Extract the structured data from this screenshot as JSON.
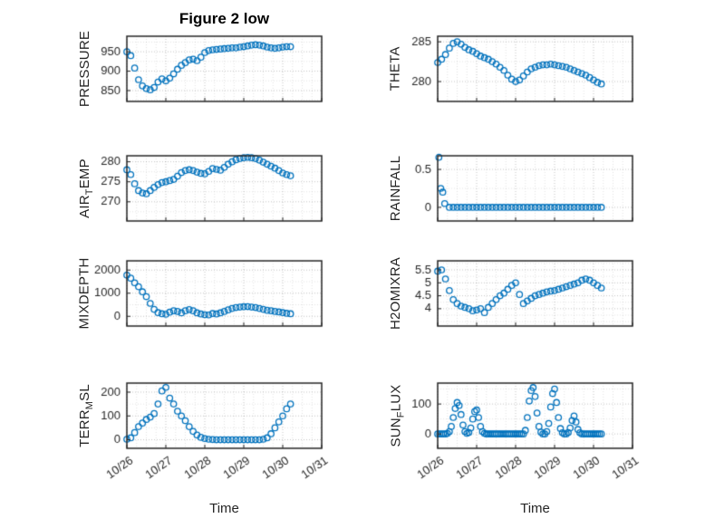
{
  "figure_title": "Figure 2 low",
  "xlabel": "Time",
  "axes_color": "#262626",
  "marker_color": "#0072BD",
  "grid_style": "dotted",
  "xlim": [
    0,
    5
  ],
  "x_tick_values": [
    0,
    1,
    2,
    3,
    4,
    5
  ],
  "x_tick_labels": [
    "10/26",
    "10/27",
    "10/28",
    "10/29",
    "10/30",
    "10/31"
  ],
  "chart_data": [
    {
      "name": "PRESSURE",
      "type": "scatter",
      "ylabel_pre": "PRESSURE",
      "ylabel_sub": "",
      "ylabel_post": "",
      "ytick_values": [
        850,
        900,
        950
      ],
      "ytick_labels": [
        "850",
        "900",
        "950"
      ],
      "ylim": [
        822,
        990
      ],
      "x": [
        0,
        0.1,
        0.2,
        0.3,
        0.4,
        0.5,
        0.6,
        0.7,
        0.8,
        0.9,
        1,
        1.1,
        1.2,
        1.3,
        1.4,
        1.5,
        1.6,
        1.7,
        1.8,
        1.9,
        2,
        2.1,
        2.2,
        2.3,
        2.4,
        2.5,
        2.6,
        2.7,
        2.8,
        2.9,
        3,
        3.1,
        3.2,
        3.3,
        3.4,
        3.5,
        3.6,
        3.7,
        3.8,
        3.9,
        4,
        4.1,
        4.2
      ],
      "y": [
        950,
        940,
        908,
        878,
        862,
        855,
        852,
        858,
        872,
        880,
        875,
        882,
        893,
        905,
        915,
        922,
        929,
        931,
        927,
        936,
        948,
        953,
        955,
        956,
        957,
        958,
        959,
        960,
        960,
        962,
        963,
        965,
        967,
        968,
        967,
        965,
        962,
        960,
        959,
        960,
        962,
        963,
        963
      ]
    },
    {
      "name": "AIR_TEMP",
      "type": "scatter",
      "ylabel_pre": "AIR",
      "ylabel_sub": "T",
      "ylabel_post": "EMP",
      "ytick_values": [
        270,
        275,
        280
      ],
      "ytick_labels": [
        "270",
        "275",
        "280"
      ],
      "ylim": [
        265.2,
        281.5
      ],
      "x": [
        0,
        0.1,
        0.2,
        0.3,
        0.4,
        0.5,
        0.6,
        0.7,
        0.8,
        0.9,
        1,
        1.1,
        1.2,
        1.3,
        1.4,
        1.5,
        1.6,
        1.7,
        1.8,
        1.9,
        2,
        2.1,
        2.2,
        2.3,
        2.4,
        2.5,
        2.6,
        2.7,
        2.8,
        2.9,
        3,
        3.1,
        3.2,
        3.3,
        3.4,
        3.5,
        3.6,
        3.7,
        3.8,
        3.9,
        4,
        4.1,
        4.2
      ],
      "y": [
        278,
        276.8,
        274.5,
        272.8,
        272.2,
        272,
        272.8,
        273.6,
        274.3,
        274.8,
        275,
        275.3,
        275.6,
        276.4,
        277.3,
        277.8,
        278,
        277.8,
        277.4,
        277.1,
        277,
        277.6,
        278.3,
        278.1,
        277.9,
        278.6,
        279.4,
        280,
        280.5,
        280.8,
        281,
        281.1,
        281,
        280.8,
        280.4,
        279.9,
        279.4,
        278.9,
        278.4,
        277.8,
        277.2,
        276.8,
        276.5
      ]
    },
    {
      "name": "MIXDEPTH",
      "type": "scatter",
      "ylabel_pre": "MIXDEPTH",
      "ylabel_sub": "",
      "ylabel_post": "",
      "ytick_values": [
        0,
        1000,
        2000
      ],
      "ytick_labels": [
        "0",
        "1000",
        "2000"
      ],
      "ylim": [
        -420,
        2400
      ],
      "x": [
        0,
        0.1,
        0.2,
        0.3,
        0.4,
        0.5,
        0.6,
        0.7,
        0.8,
        0.9,
        1,
        1.1,
        1.2,
        1.3,
        1.4,
        1.5,
        1.6,
        1.7,
        1.8,
        1.9,
        2,
        2.1,
        2.2,
        2.3,
        2.4,
        2.5,
        2.6,
        2.7,
        2.8,
        2.9,
        3,
        3.1,
        3.2,
        3.3,
        3.4,
        3.5,
        3.6,
        3.7,
        3.8,
        3.9,
        4,
        4.1,
        4.2
      ],
      "y": [
        1780,
        1650,
        1450,
        1280,
        1060,
        850,
        560,
        300,
        160,
        110,
        90,
        180,
        240,
        210,
        150,
        240,
        290,
        240,
        150,
        100,
        70,
        60,
        120,
        100,
        150,
        210,
        280,
        340,
        380,
        400,
        415,
        420,
        400,
        380,
        340,
        300,
        260,
        240,
        210,
        190,
        160,
        130,
        110
      ]
    },
    {
      "name": "TERR_MSL",
      "type": "scatter",
      "ylabel_pre": "TERR",
      "ylabel_sub": "M",
      "ylabel_post": "SL",
      "ytick_values": [
        0,
        100,
        200
      ],
      "ytick_labels": [
        "0",
        "100",
        "200"
      ],
      "ylim": [
        -36,
        238
      ],
      "x": [
        0,
        0.1,
        0.2,
        0.3,
        0.4,
        0.5,
        0.6,
        0.7,
        0.8,
        0.9,
        1,
        1.1,
        1.2,
        1.3,
        1.4,
        1.5,
        1.6,
        1.7,
        1.8,
        1.9,
        2,
        2.1,
        2.2,
        2.3,
        2.4,
        2.5,
        2.6,
        2.7,
        2.8,
        2.9,
        3,
        3.1,
        3.2,
        3.3,
        3.4,
        3.5,
        3.6,
        3.7,
        3.8,
        3.9,
        4,
        4.1,
        4.2
      ],
      "y": [
        2,
        8,
        30,
        55,
        70,
        85,
        95,
        110,
        150,
        205,
        220,
        175,
        150,
        120,
        100,
        80,
        55,
        35,
        20,
        10,
        5,
        2,
        1,
        0,
        0,
        0,
        0,
        0,
        0,
        0,
        0,
        0,
        0,
        0,
        0,
        2,
        8,
        25,
        50,
        75,
        100,
        130,
        150
      ]
    },
    {
      "name": "THETA",
      "type": "scatter",
      "ylabel_pre": "THETA",
      "ylabel_sub": "",
      "ylabel_post": "",
      "ytick_values": [
        280,
        285
      ],
      "ytick_labels": [
        "280",
        "285"
      ],
      "ylim": [
        277.5,
        285.7
      ],
      "x": [
        0,
        0.1,
        0.2,
        0.3,
        0.4,
        0.5,
        0.6,
        0.7,
        0.8,
        0.9,
        1,
        1.1,
        1.2,
        1.3,
        1.4,
        1.5,
        1.6,
        1.7,
        1.8,
        1.9,
        2,
        2.1,
        2.2,
        2.3,
        2.4,
        2.5,
        2.6,
        2.7,
        2.8,
        2.9,
        3,
        3.1,
        3.2,
        3.3,
        3.4,
        3.5,
        3.6,
        3.7,
        3.8,
        3.9,
        4,
        4.1,
        4.2
      ],
      "y": [
        282.4,
        282.8,
        283.4,
        284.2,
        284.8,
        285,
        284.7,
        284.3,
        284,
        283.8,
        283.5,
        283.2,
        283,
        282.8,
        282.5,
        282.2,
        281.8,
        281.4,
        280.8,
        280.3,
        280,
        280.2,
        280.7,
        281.2,
        281.6,
        281.8,
        282,
        282.1,
        282.1,
        282.2,
        282.1,
        282,
        281.9,
        281.8,
        281.6,
        281.4,
        281.2,
        281,
        280.8,
        280.5,
        280.2,
        279.9,
        279.7
      ]
    },
    {
      "name": "RAINFALL",
      "type": "scatter",
      "ylabel_pre": "RAINFALL",
      "ylabel_sub": "",
      "ylabel_post": "",
      "ytick_values": [
        0,
        0.5
      ],
      "ytick_labels": [
        "0",
        "0.5"
      ],
      "ylim": [
        -0.18,
        0.68
      ],
      "x": [
        0.03,
        0.08,
        0.13,
        0.18,
        0.3,
        0.4,
        0.5,
        0.6,
        0.7,
        0.8,
        0.9,
        1,
        1.1,
        1.2,
        1.3,
        1.4,
        1.5,
        1.6,
        1.7,
        1.8,
        1.9,
        2,
        2.1,
        2.2,
        2.3,
        2.4,
        2.5,
        2.6,
        2.7,
        2.8,
        2.9,
        3,
        3.1,
        3.2,
        3.3,
        3.4,
        3.5,
        3.6,
        3.7,
        3.8,
        3.9,
        4,
        4.1,
        4.2
      ],
      "y": [
        0.66,
        0.25,
        0.2,
        0.05,
        0,
        0,
        0,
        0,
        0,
        0,
        0,
        0,
        0,
        0,
        0,
        0,
        0,
        0,
        0,
        0,
        0,
        0,
        0,
        0,
        0,
        0,
        0,
        0,
        0,
        0,
        0,
        0,
        0,
        0,
        0,
        0,
        0,
        0,
        0,
        0,
        0,
        0,
        0,
        0
      ]
    },
    {
      "name": "H2OMIXRA",
      "type": "scatter",
      "ylabel_pre": "H2OMIXRA",
      "ylabel_sub": "",
      "ylabel_post": "",
      "ytick_values": [
        4,
        4.5,
        5,
        5.5
      ],
      "ytick_labels": [
        "4",
        "4.5",
        "5",
        "5.5"
      ],
      "ylim": [
        3.33,
        5.85
      ],
      "x": [
        0,
        0.1,
        0.2,
        0.3,
        0.4,
        0.5,
        0.6,
        0.7,
        0.8,
        0.9,
        1,
        1.1,
        1.2,
        1.3,
        1.4,
        1.5,
        1.6,
        1.7,
        1.8,
        1.9,
        2,
        2.1,
        2.2,
        2.3,
        2.4,
        2.5,
        2.6,
        2.7,
        2.8,
        2.9,
        3,
        3.1,
        3.2,
        3.3,
        3.4,
        3.5,
        3.6,
        3.7,
        3.8,
        3.9,
        4,
        4.1,
        4.2
      ],
      "y": [
        5.45,
        5.5,
        5.15,
        4.7,
        4.35,
        4.2,
        4.1,
        4.05,
        4,
        3.92,
        3.95,
        4,
        3.85,
        4.05,
        4.2,
        4.35,
        4.5,
        4.6,
        4.75,
        4.9,
        5,
        4.55,
        4.2,
        4.3,
        4.4,
        4.5,
        4.55,
        4.6,
        4.65,
        4.68,
        4.7,
        4.75,
        4.8,
        4.85,
        4.9,
        4.95,
        5,
        5.1,
        5.15,
        5.1,
        5,
        4.9,
        4.8
      ]
    },
    {
      "name": "SUN_FLUX",
      "type": "scatter",
      "ylabel_pre": "SUN",
      "ylabel_sub": "F",
      "ylabel_post": "LUX",
      "ytick_values": [
        0,
        100
      ],
      "ytick_labels": [
        "0",
        "100"
      ],
      "ylim": [
        -48,
        170
      ],
      "x": [
        0,
        0.05,
        0.1,
        0.15,
        0.2,
        0.25,
        0.3,
        0.35,
        0.4,
        0.45,
        0.5,
        0.55,
        0.6,
        0.65,
        0.7,
        0.75,
        0.8,
        0.85,
        0.9,
        0.95,
        1,
        1.05,
        1.1,
        1.15,
        1.2,
        1.25,
        1.3,
        1.35,
        1.4,
        1.45,
        1.5,
        1.55,
        1.6,
        1.65,
        1.7,
        1.75,
        1.8,
        1.85,
        1.9,
        1.95,
        2,
        2.05,
        2.1,
        2.15,
        2.2,
        2.25,
        2.3,
        2.35,
        2.4,
        2.45,
        2.5,
        2.55,
        2.6,
        2.65,
        2.7,
        2.75,
        2.8,
        2.85,
        2.9,
        2.95,
        3,
        3.05,
        3.1,
        3.15,
        3.2,
        3.25,
        3.3,
        3.35,
        3.4,
        3.45,
        3.5,
        3.55,
        3.6,
        3.65,
        3.7,
        3.75,
        3.8,
        3.85,
        3.9,
        3.95,
        4,
        4.05,
        4.1,
        4.15,
        4.2
      ],
      "y": [
        0,
        0,
        0,
        0,
        0,
        2,
        8,
        25,
        55,
        85,
        105,
        95,
        65,
        30,
        8,
        2,
        5,
        20,
        50,
        75,
        80,
        55,
        25,
        8,
        2,
        0,
        0,
        0,
        0,
        0,
        0,
        0,
        0,
        0,
        0,
        0,
        0,
        0,
        0,
        0,
        0,
        0,
        0,
        0,
        0,
        12,
        55,
        110,
        145,
        155,
        125,
        70,
        25,
        6,
        0,
        0,
        8,
        35,
        90,
        135,
        150,
        105,
        55,
        18,
        4,
        0,
        0,
        5,
        20,
        45,
        60,
        40,
        15,
        4,
        0,
        0,
        0,
        0,
        0,
        0,
        0,
        0,
        0,
        0,
        0
      ]
    }
  ]
}
